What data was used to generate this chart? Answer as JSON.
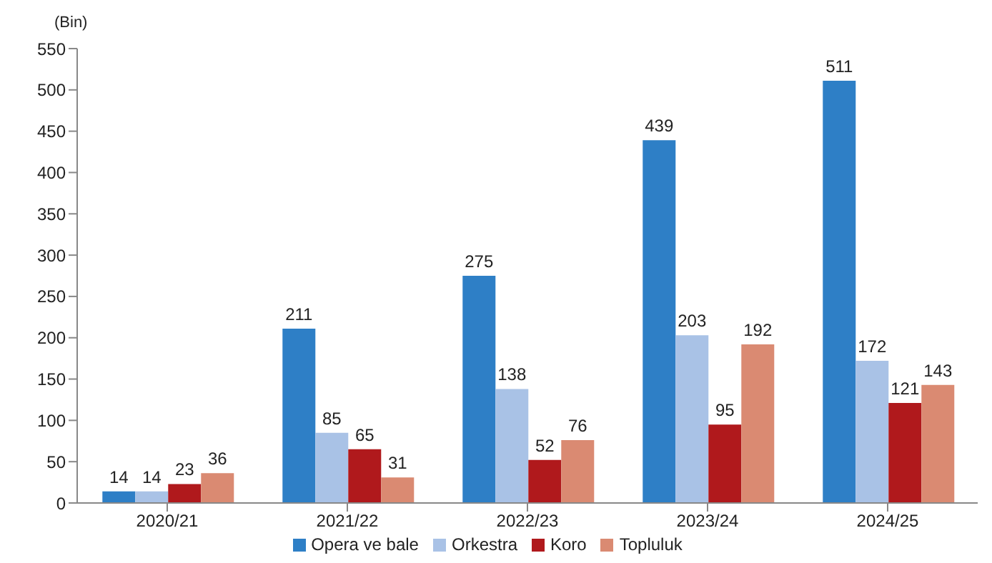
{
  "chart_data": {
    "type": "bar",
    "ylabel": "(Bin)",
    "categories": [
      "2020/21",
      "2021/22",
      "2022/23",
      "2023/24",
      "2024/25"
    ],
    "series": [
      {
        "name": "Opera ve bale",
        "color": "#2e7fc6",
        "values": [
          14,
          211,
          275,
          439,
          511
        ]
      },
      {
        "name": "Orkestra",
        "color": "#a9c2e6",
        "values": [
          14,
          85,
          138,
          203,
          172
        ]
      },
      {
        "name": "Koro",
        "color": "#b0191c",
        "values": [
          23,
          65,
          52,
          95,
          121
        ]
      },
      {
        "name": "Topluluk",
        "color": "#da8a72",
        "values": [
          36,
          31,
          76,
          192,
          143
        ]
      }
    ],
    "ylim": [
      0,
      550
    ],
    "yticks": [
      0,
      50,
      100,
      150,
      200,
      250,
      300,
      350,
      400,
      450,
      500,
      550
    ],
    "grid": false,
    "legend": "bottom",
    "data_labels": true
  }
}
